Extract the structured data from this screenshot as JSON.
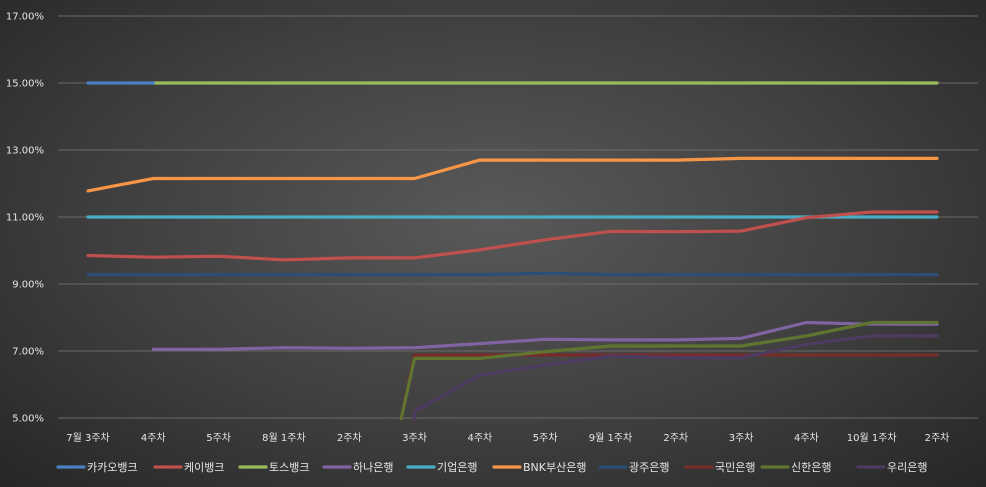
{
  "chart_data": {
    "type": "line",
    "title": "",
    "xlabel": "",
    "ylabel": "",
    "categories": [
      "7월 3주차",
      "4주차",
      "5주차",
      "8월 1주차",
      "2주차",
      "3주차",
      "4주차",
      "5주차",
      "9월 1주차",
      "2주차",
      "3주차",
      "4주차",
      "10월 1주차",
      "2주차"
    ],
    "ylim": [
      5.0,
      17.0
    ],
    "yticks": [
      "5.00%",
      "7.00%",
      "9.00%",
      "11.00%",
      "13.00%",
      "15.00%",
      "17.00%"
    ],
    "grid": true,
    "legend_position": "bottom",
    "series": [
      {
        "name": "카카오뱅크",
        "color": "#4a7fc1",
        "values": [
          15.0,
          15.0,
          null,
          null,
          null,
          null,
          null,
          null,
          null,
          null,
          null,
          null,
          null,
          null
        ]
      },
      {
        "name": "케이뱅크",
        "color": "#c0504d",
        "values": [
          9.85,
          9.8,
          9.83,
          9.72,
          9.78,
          9.78,
          10.02,
          10.32,
          10.57,
          10.56,
          10.58,
          10.98,
          11.15,
          11.15
        ]
      },
      {
        "name": "토스뱅크",
        "color": "#9bbb59",
        "values": [
          null,
          15.0,
          15.0,
          15.0,
          15.0,
          15.0,
          15.0,
          15.0,
          15.0,
          15.0,
          15.0,
          15.0,
          15.0,
          15.0
        ]
      },
      {
        "name": "하나은행",
        "color": "#8064a2",
        "values": [
          null,
          7.05,
          7.05,
          7.1,
          7.08,
          7.1,
          7.22,
          7.35,
          7.33,
          7.33,
          7.38,
          7.85,
          7.8,
          7.8
        ]
      },
      {
        "name": "기업은행",
        "color": "#4bacc6",
        "values": [
          11.0,
          11.0,
          11.0,
          11.0,
          11.0,
          11.0,
          11.0,
          11.0,
          11.0,
          11.0,
          11.0,
          11.0,
          11.0,
          11.0
        ]
      },
      {
        "name": "BNK부산은행",
        "color": "#f79646",
        "values": [
          11.78,
          12.15,
          12.15,
          12.15,
          12.15,
          12.15,
          12.7,
          12.7,
          12.7,
          12.7,
          12.75,
          12.75,
          12.75,
          12.75
        ]
      },
      {
        "name": "광주은행",
        "color": "#2c4d75",
        "values": [
          9.28,
          9.28,
          9.28,
          9.28,
          9.28,
          9.28,
          9.28,
          9.32,
          9.28,
          9.28,
          9.28,
          9.28,
          9.28,
          9.28
        ]
      },
      {
        "name": "국민은행",
        "color": "#772c2a",
        "values": [
          null,
          null,
          null,
          null,
          null,
          6.88,
          6.88,
          6.88,
          6.88,
          6.88,
          6.88,
          6.88,
          6.88,
          6.88
        ]
      },
      {
        "name": "신한은행",
        "color": "#5f7530",
        "values": [
          null,
          null,
          null,
          null,
          null,
          6.78,
          6.78,
          6.98,
          7.15,
          7.15,
          7.15,
          7.45,
          7.85,
          7.85
        ]
      },
      {
        "name": "우리은행",
        "color": "#4d3b62",
        "values": [
          null,
          null,
          null,
          null,
          null,
          5.2,
          6.28,
          6.58,
          6.85,
          6.8,
          6.8,
          7.2,
          7.45,
          7.45
        ]
      }
    ]
  }
}
